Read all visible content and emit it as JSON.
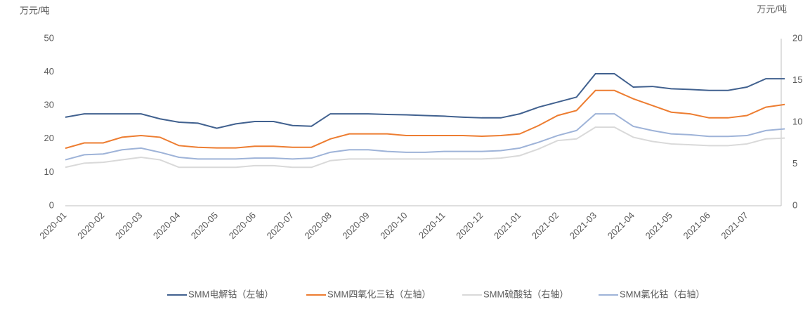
{
  "chart_data": {
    "type": "line",
    "y_label": "万元/吨",
    "y2_label": "万元/吨",
    "categories": [
      "2020-01",
      null,
      "2020-02",
      null,
      "2020-03",
      null,
      "2020-04",
      null,
      "2020-05",
      null,
      "2020-06",
      null,
      "2020-07",
      null,
      "2020-08",
      null,
      "2020-09",
      null,
      "2020-10",
      null,
      "2020-11",
      null,
      "2020-12",
      null,
      "2021-01",
      null,
      "2021-02",
      null,
      "2021-03",
      null,
      "2021-04",
      null,
      "2021-05",
      null,
      "2021-06",
      null,
      "2021-07",
      null,
      null
    ],
    "series": [
      {
        "name": "SMM电解钴（左轴）",
        "color": "#41618f",
        "axis": "y",
        "values": [
          26.5,
          27.5,
          27.5,
          27.5,
          27.5,
          26,
          25,
          24.7,
          23.2,
          24.5,
          25.2,
          25.2,
          24,
          23.8,
          27.5,
          27.5,
          27.5,
          27.3,
          27.2,
          27,
          26.8,
          26.5,
          26.3,
          26.3,
          27.5,
          29.5,
          31,
          32.5,
          39.5,
          39.5,
          35.5,
          35.7,
          35,
          34.8,
          34.5,
          34.5,
          35.5,
          38,
          38
        ]
      },
      {
        "name": "SMM四氧化三钴（左轴）",
        "color": "#ed7d31",
        "axis": "y",
        "values": [
          17.2,
          18.8,
          18.8,
          20.5,
          21,
          20.5,
          18,
          17.5,
          17.3,
          17.3,
          17.8,
          17.8,
          17.5,
          17.5,
          20,
          21.5,
          21.5,
          21.5,
          21,
          21,
          21,
          21,
          20.8,
          21,
          21.5,
          24,
          27,
          28.5,
          34.5,
          34.5,
          32,
          30,
          28,
          27.5,
          26.3,
          26.3,
          27,
          29.5,
          30.3
        ]
      },
      {
        "name": "SMM硫酸钴（右轴）",
        "color": "#d9d9d9",
        "axis": "y2",
        "values": [
          4.6,
          5.1,
          5.2,
          5.5,
          5.8,
          5.5,
          4.6,
          4.6,
          4.6,
          4.6,
          4.8,
          4.8,
          4.6,
          4.6,
          5.4,
          5.6,
          5.6,
          5.6,
          5.6,
          5.6,
          5.6,
          5.6,
          5.6,
          5.7,
          6,
          6.8,
          7.8,
          8,
          9.4,
          9.4,
          8.2,
          7.7,
          7.4,
          7.3,
          7.2,
          7.2,
          7.4,
          8,
          8.1
        ]
      },
      {
        "name": "SMM氯化钴（右轴）",
        "color": "#9eb3d8",
        "axis": "y2",
        "values": [
          5.5,
          6.1,
          6.2,
          6.7,
          6.9,
          6.4,
          5.8,
          5.6,
          5.6,
          5.6,
          5.7,
          5.7,
          5.6,
          5.7,
          6.4,
          6.7,
          6.7,
          6.5,
          6.4,
          6.4,
          6.5,
          6.5,
          6.5,
          6.6,
          6.9,
          7.6,
          8.4,
          9,
          11,
          11,
          9.5,
          9,
          8.6,
          8.5,
          8.3,
          8.3,
          8.4,
          9,
          9.2
        ]
      }
    ],
    "ylim": [
      0,
      50
    ],
    "yticks": [
      0,
      10,
      20,
      30,
      40,
      50
    ],
    "y2lim": [
      0,
      20
    ],
    "y2ticks": [
      0,
      5,
      10,
      15,
      20
    ],
    "grid": false,
    "legend": "bottom"
  }
}
